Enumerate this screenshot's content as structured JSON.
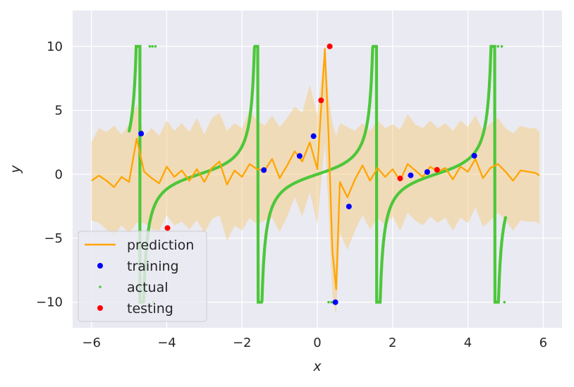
{
  "chart_data": {
    "type": "line",
    "title": "",
    "xlabel": "x",
    "ylabel": "y",
    "xlim": [
      -6.5,
      6.5
    ],
    "ylim": [
      -12.0,
      12.8
    ],
    "xticks": [
      -6,
      -4,
      -2,
      0,
      2,
      4,
      6
    ],
    "yticks": [
      -10,
      -5,
      0,
      5,
      10
    ],
    "xtick_labels": [
      "−6",
      "−4",
      "−2",
      "0",
      "2",
      "4",
      "6"
    ],
    "ytick_labels": [
      "−10",
      "−5",
      "0",
      "5",
      "10"
    ],
    "grid": true,
    "legend_position": "lower-left",
    "legend": [
      {
        "label": "prediction",
        "kind": "line",
        "color": "#FFA500"
      },
      {
        "label": "training",
        "kind": "dot",
        "color": "#0000FF"
      },
      {
        "label": "actual",
        "kind": "small-dot",
        "color": "#4CC73A"
      },
      {
        "label": "testing",
        "kind": "dot",
        "color": "#FF0000"
      }
    ],
    "colors": {
      "background": "#EAEAF2",
      "grid": "#FFFFFF",
      "prediction": "#FFA500",
      "band": "#F5CB7E",
      "actual": "#4CC73A",
      "training": "#0000FF",
      "testing": "#FF0000"
    },
    "actual_function": "tan(x) clipped to [-10, 10], x from -5 to 5",
    "series": [
      {
        "name": "prediction",
        "x": [
          -6.0,
          -5.8,
          -5.6,
          -5.4,
          -5.2,
          -5.0,
          -4.8,
          -4.6,
          -4.4,
          -4.2,
          -4.0,
          -3.8,
          -3.6,
          -3.4,
          -3.2,
          -3.0,
          -2.8,
          -2.6,
          -2.4,
          -2.2,
          -2.0,
          -1.8,
          -1.6,
          -1.4,
          -1.2,
          -1.0,
          -0.8,
          -0.6,
          -0.4,
          -0.2,
          0.0,
          0.2,
          0.3,
          0.4,
          0.5,
          0.6,
          0.8,
          1.0,
          1.2,
          1.4,
          1.6,
          1.8,
          2.0,
          2.2,
          2.4,
          2.6,
          2.8,
          3.0,
          3.2,
          3.4,
          3.6,
          3.8,
          4.0,
          4.2,
          4.4,
          4.6,
          4.8,
          5.0,
          5.2,
          5.4,
          5.6,
          5.8,
          5.9
        ],
        "y": [
          -0.5,
          -0.1,
          -0.5,
          -1.0,
          -0.2,
          -0.6,
          2.8,
          0.2,
          -0.3,
          -0.7,
          0.6,
          -0.2,
          0.3,
          -0.5,
          0.4,
          -0.6,
          0.5,
          1.0,
          -0.8,
          0.3,
          -0.2,
          0.8,
          0.4,
          0.3,
          1.2,
          -0.3,
          0.7,
          1.8,
          1.0,
          2.5,
          0.4,
          9.8,
          3.0,
          -6.0,
          -9.0,
          -0.6,
          -1.8,
          -0.4,
          0.7,
          -0.5,
          0.5,
          -0.2,
          0.4,
          -0.5,
          0.8,
          0.3,
          -0.2,
          0.6,
          0.2,
          0.5,
          -0.4,
          0.6,
          0.2,
          1.2,
          -0.3,
          0.5,
          0.8,
          0.2,
          -0.5,
          0.3,
          0.2,
          0.1,
          -0.1
        ],
        "upper": [
          2.5,
          3.6,
          3.3,
          3.8,
          3.1,
          3.9,
          5.5,
          3.0,
          3.6,
          3.0,
          4.2,
          3.4,
          4.0,
          3.3,
          4.4,
          3.1,
          4.4,
          4.8,
          3.4,
          4.0,
          3.6,
          5.0,
          4.2,
          3.8,
          4.6,
          3.7,
          4.4,
          5.3,
          4.8,
          7.0,
          4.6,
          10.0,
          6.0,
          4.0,
          3.0,
          4.0,
          3.7,
          3.4,
          4.0,
          3.4,
          4.2,
          3.6,
          3.9,
          3.5,
          4.7,
          3.9,
          3.6,
          4.2,
          3.6,
          4.0,
          3.4,
          4.2,
          3.7,
          4.6,
          3.4,
          4.0,
          4.4,
          3.6,
          3.2,
          3.8,
          3.6,
          3.6,
          3.3
        ],
        "lower": [
          -3.6,
          -3.8,
          -4.3,
          -4.8,
          -4.0,
          -4.6,
          -3.8,
          -3.8,
          -4.3,
          -4.4,
          -3.2,
          -4.0,
          -3.7,
          -4.3,
          -3.6,
          -4.6,
          -3.5,
          -3.2,
          -5.2,
          -4.0,
          -4.4,
          -3.4,
          -3.9,
          -3.6,
          -3.4,
          -4.5,
          -3.3,
          -1.8,
          -3.3,
          -1.4,
          -3.9,
          2.5,
          -2.8,
          -9.5,
          -11.0,
          -4.6,
          -5.9,
          -4.4,
          -3.2,
          -4.3,
          -3.4,
          -4.0,
          -3.3,
          -4.4,
          -3.0,
          -3.6,
          -4.0,
          -3.3,
          -3.8,
          -3.4,
          -4.4,
          -3.4,
          -3.8,
          -2.6,
          -4.1,
          -3.6,
          -3.0,
          -3.6,
          -4.4,
          -3.6,
          -3.7,
          -3.7,
          -3.9
        ]
      },
      {
        "name": "training",
        "x": [
          -4.68,
          -1.42,
          -0.47,
          -0.1,
          0.48,
          0.84,
          2.48,
          2.92,
          4.17
        ],
        "y": [
          3.18,
          0.33,
          1.43,
          2.98,
          -10.0,
          -2.52,
          -0.08,
          0.18,
          1.45
        ]
      },
      {
        "name": "testing",
        "x": [
          -3.98,
          0.1,
          0.33,
          2.2,
          3.18
        ],
        "y": [
          -4.2,
          5.78,
          10.0,
          -0.32,
          0.35
        ]
      }
    ]
  }
}
